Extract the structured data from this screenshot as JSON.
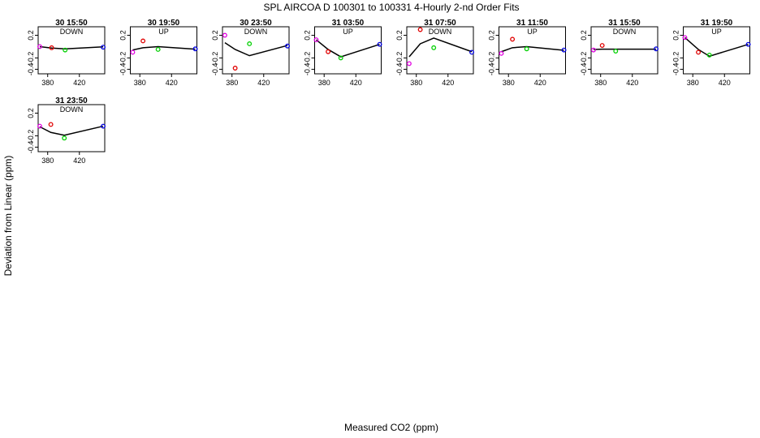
{
  "figure": {
    "title": "SPL   AIRCOA D   100301 to 100331   4-Hourly 2-nd Order Fits",
    "xlabel": "Measured CO2 (ppm)",
    "ylabel": "Deviation from Linear (ppm)"
  },
  "chart_data": {
    "type": "scatter",
    "xlim": [
      368,
      452
    ],
    "ylim": [
      -0.48,
      0.35
    ],
    "x_ticks": [
      380,
      420
    ],
    "y_ticks": [
      -0.4,
      -0.2,
      0.2
    ],
    "grid": false,
    "legend": "none",
    "point_colors": [
      "#e000e0",
      "#e00000",
      "#00d000",
      "#0000e0"
    ],
    "fit_color": "#000000",
    "panels": [
      {
        "title": "30 15:50",
        "direction": "DOWN",
        "points": [
          {
            "x": 370,
            "y": 0.0
          },
          {
            "x": 385,
            "y": -0.02
          },
          {
            "x": 402,
            "y": -0.06
          },
          {
            "x": 450,
            "y": -0.01
          }
        ],
        "fit": [
          {
            "x": 370,
            "y": 0.0
          },
          {
            "x": 385,
            "y": -0.025
          },
          {
            "x": 402,
            "y": -0.04
          },
          {
            "x": 450,
            "y": -0.005
          }
        ]
      },
      {
        "title": "30 19:50",
        "direction": "UP",
        "points": [
          {
            "x": 371,
            "y": -0.1
          },
          {
            "x": 384,
            "y": 0.1
          },
          {
            "x": 403,
            "y": -0.05
          },
          {
            "x": 450,
            "y": -0.04
          }
        ],
        "fit": [
          {
            "x": 371,
            "y": -0.06
          },
          {
            "x": 384,
            "y": -0.02
          },
          {
            "x": 403,
            "y": 0.0
          },
          {
            "x": 450,
            "y": -0.045
          }
        ]
      },
      {
        "title": "30 23:50",
        "direction": "DOWN",
        "points": [
          {
            "x": 371,
            "y": 0.2
          },
          {
            "x": 384,
            "y": -0.38
          },
          {
            "x": 402,
            "y": 0.05
          },
          {
            "x": 450,
            "y": 0.01
          }
        ],
        "fit": [
          {
            "x": 371,
            "y": 0.07
          },
          {
            "x": 384,
            "y": -0.05
          },
          {
            "x": 402,
            "y": -0.16
          },
          {
            "x": 450,
            "y": 0.02
          }
        ]
      },
      {
        "title": "31 03:50",
        "direction": "UP",
        "points": [
          {
            "x": 370,
            "y": 0.12
          },
          {
            "x": 385,
            "y": -0.09
          },
          {
            "x": 401,
            "y": -0.2
          },
          {
            "x": 450,
            "y": 0.04
          }
        ],
        "fit": [
          {
            "x": 370,
            "y": 0.12
          },
          {
            "x": 385,
            "y": -0.05
          },
          {
            "x": 401,
            "y": -0.18
          },
          {
            "x": 450,
            "y": 0.04
          }
        ]
      },
      {
        "title": "31 07:50",
        "direction": "DOWN",
        "points": [
          {
            "x": 371,
            "y": -0.3
          },
          {
            "x": 385,
            "y": 0.3
          },
          {
            "x": 402,
            "y": -0.02
          },
          {
            "x": 450,
            "y": -0.1
          }
        ],
        "fit": [
          {
            "x": 371,
            "y": -0.18
          },
          {
            "x": 385,
            "y": 0.05
          },
          {
            "x": 402,
            "y": 0.15
          },
          {
            "x": 450,
            "y": -0.09
          }
        ]
      },
      {
        "title": "31 11:50",
        "direction": "UP",
        "points": [
          {
            "x": 371,
            "y": -0.12
          },
          {
            "x": 385,
            "y": 0.13
          },
          {
            "x": 403,
            "y": -0.04
          },
          {
            "x": 450,
            "y": -0.06
          }
        ],
        "fit": [
          {
            "x": 371,
            "y": -0.09
          },
          {
            "x": 385,
            "y": -0.02
          },
          {
            "x": 403,
            "y": 0.0
          },
          {
            "x": 450,
            "y": -0.065
          }
        ]
      },
      {
        "title": "31 15:50",
        "direction": "DOWN",
        "points": [
          {
            "x": 371,
            "y": -0.06
          },
          {
            "x": 382,
            "y": 0.02
          },
          {
            "x": 399,
            "y": -0.08
          },
          {
            "x": 450,
            "y": -0.04
          }
        ],
        "fit": [
          {
            "x": 371,
            "y": -0.05
          },
          {
            "x": 382,
            "y": -0.045
          },
          {
            "x": 399,
            "y": -0.045
          },
          {
            "x": 450,
            "y": -0.045
          }
        ]
      },
      {
        "title": "31 19:50",
        "direction": "UP",
        "points": [
          {
            "x": 370,
            "y": 0.16
          },
          {
            "x": 387,
            "y": -0.1
          },
          {
            "x": 401,
            "y": -0.15
          },
          {
            "x": 450,
            "y": 0.04
          }
        ],
        "fit": [
          {
            "x": 370,
            "y": 0.16
          },
          {
            "x": 387,
            "y": -0.05
          },
          {
            "x": 401,
            "y": -0.17
          },
          {
            "x": 450,
            "y": 0.04
          }
        ]
      },
      {
        "title": "31 23:50",
        "direction": "DOWN",
        "points": [
          {
            "x": 370,
            "y": -0.03
          },
          {
            "x": 384,
            "y": 0.0
          },
          {
            "x": 401,
            "y": -0.24
          },
          {
            "x": 450,
            "y": -0.03
          }
        ],
        "fit": [
          {
            "x": 370,
            "y": -0.04
          },
          {
            "x": 384,
            "y": -0.14
          },
          {
            "x": 401,
            "y": -0.19
          },
          {
            "x": 450,
            "y": -0.03
          }
        ]
      }
    ]
  }
}
